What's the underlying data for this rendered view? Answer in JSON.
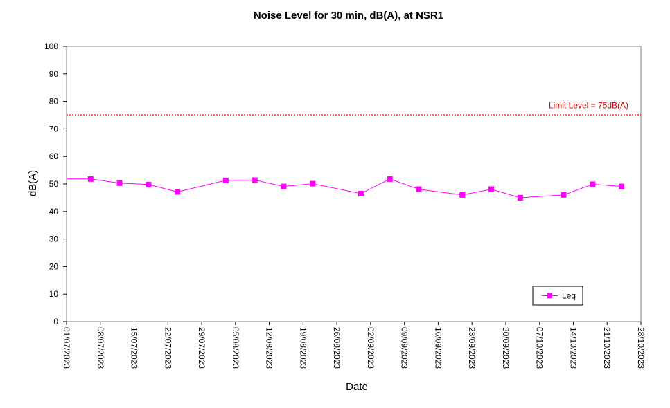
{
  "chart_data": {
    "type": "line",
    "title": "Noise Level for 30 min, dB(A), at NSR1",
    "xlabel": "Date",
    "ylabel": "dB(A)",
    "ylim": [
      0,
      100
    ],
    "yticks": [
      0,
      10,
      20,
      30,
      40,
      50,
      60,
      70,
      80,
      90,
      100
    ],
    "xlim": [
      "01/07/2023",
      "28/10/2023"
    ],
    "xticks": [
      "01/07/2023",
      "08/07/2023",
      "15/07/2023",
      "22/07/2023",
      "29/07/2023",
      "05/08/2023",
      "12/08/2023",
      "19/08/2023",
      "26/08/2023",
      "02/09/2023",
      "09/09/2023",
      "16/09/2023",
      "23/09/2023",
      "30/09/2023",
      "07/10/2023",
      "14/10/2023",
      "21/10/2023",
      "28/10/2023"
    ],
    "grid": false,
    "legend_position": "bottom-right",
    "series": [
      {
        "name": "Leq",
        "color": "#ff00ff",
        "marker": "square",
        "x": [
          "06/07/2023",
          "12/07/2023",
          "18/07/2023",
          "24/07/2023",
          "03/08/2023",
          "09/08/2023",
          "15/08/2023",
          "21/08/2023",
          "31/08/2023",
          "06/09/2023",
          "12/09/2023",
          "21/09/2023",
          "27/09/2023",
          "03/10/2023",
          "12/10/2023",
          "18/10/2023",
          "24/10/2023"
        ],
        "y": [
          51.8,
          50.3,
          49.8,
          47.1,
          51.3,
          51.4,
          49.1,
          50.1,
          46.5,
          51.8,
          48.1,
          46.0,
          48.1,
          45.0,
          46.0,
          49.9,
          49.1
        ],
        "leading_line_from": {
          "x": "01/07/2023",
          "y": 51.8
        }
      }
    ],
    "reference_lines": [
      {
        "label": "Limit Level  = 75dB(A)",
        "y": 75,
        "color": "#cc0000",
        "style": "dotted"
      }
    ]
  }
}
